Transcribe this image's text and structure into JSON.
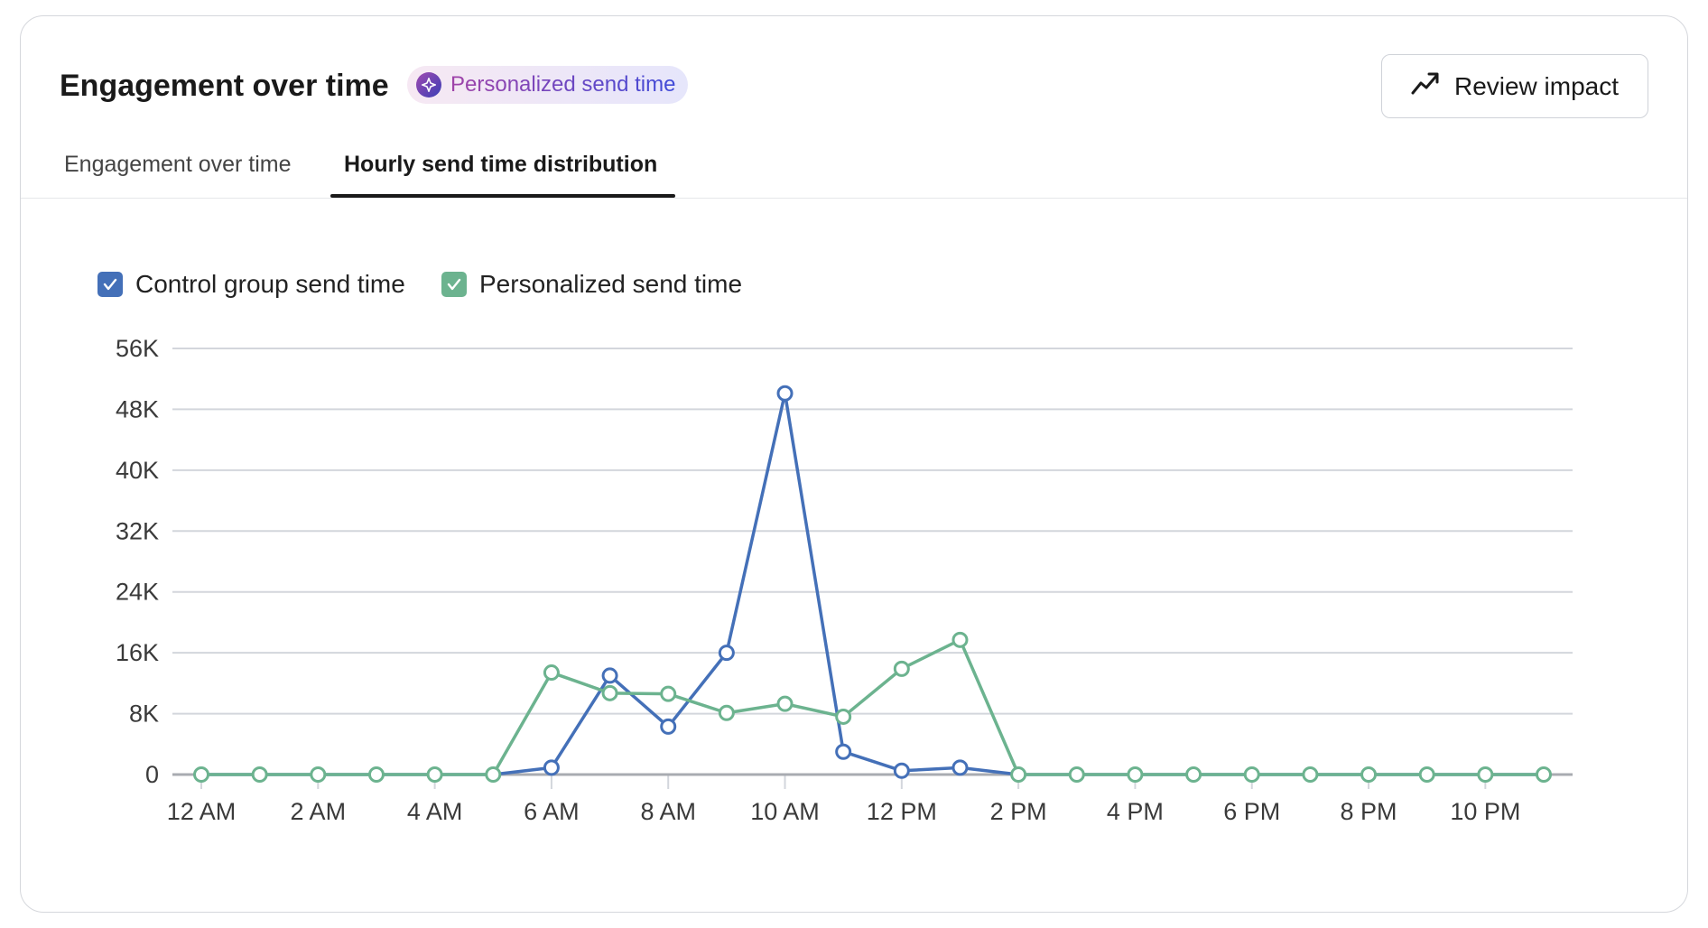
{
  "header": {
    "title": "Engagement over time",
    "badge_label": "Personalized send time",
    "badge_icon": "sparkle-icon",
    "review_button_label": "Review impact",
    "review_button_icon": "trending-up-icon"
  },
  "tabs": [
    {
      "label": "Engagement over time",
      "active": false
    },
    {
      "label": "Hourly send time distribution",
      "active": true
    }
  ],
  "colors": {
    "control": "#4470b8",
    "personalized": "#6cb38f",
    "grid": "#d3d6dc",
    "axis": "#a8abb1"
  },
  "chart_data": {
    "type": "line",
    "x": [
      "12 AM",
      "1 AM",
      "2 AM",
      "3 AM",
      "4 AM",
      "5 AM",
      "6 AM",
      "7 AM",
      "8 AM",
      "9 AM",
      "10 AM",
      "11 AM",
      "12 PM",
      "1 PM",
      "2 PM",
      "3 PM",
      "4 PM",
      "5 PM",
      "6 PM",
      "7 PM",
      "8 PM",
      "9 PM",
      "10 PM",
      "11 PM"
    ],
    "x_tick_labels": [
      "12 AM",
      "2 AM",
      "4 AM",
      "6 AM",
      "8 AM",
      "10 AM",
      "12 PM",
      "2 PM",
      "4 PM",
      "6 PM",
      "8 PM",
      "10 PM"
    ],
    "y_tick_labels": [
      "0",
      "8K",
      "16K",
      "24K",
      "32K",
      "40K",
      "48K",
      "56K"
    ],
    "ylim": [
      0,
      56000
    ],
    "grid": true,
    "legend_position": "top-left",
    "series": [
      {
        "name": "Control group send time",
        "color": "#4470b8",
        "checked": true,
        "values": [
          0,
          0,
          0,
          0,
          0,
          0,
          900,
          13000,
          6300,
          16000,
          50100,
          3000,
          500,
          900,
          0,
          0,
          0,
          0,
          0,
          0,
          0,
          0,
          0,
          0
        ]
      },
      {
        "name": "Personalized send time",
        "color": "#6cb38f",
        "checked": true,
        "values": [
          0,
          0,
          0,
          0,
          0,
          0,
          13400,
          10700,
          10600,
          8100,
          9300,
          7600,
          13900,
          17700,
          0,
          0,
          0,
          0,
          0,
          0,
          0,
          0,
          0,
          0
        ]
      }
    ]
  }
}
